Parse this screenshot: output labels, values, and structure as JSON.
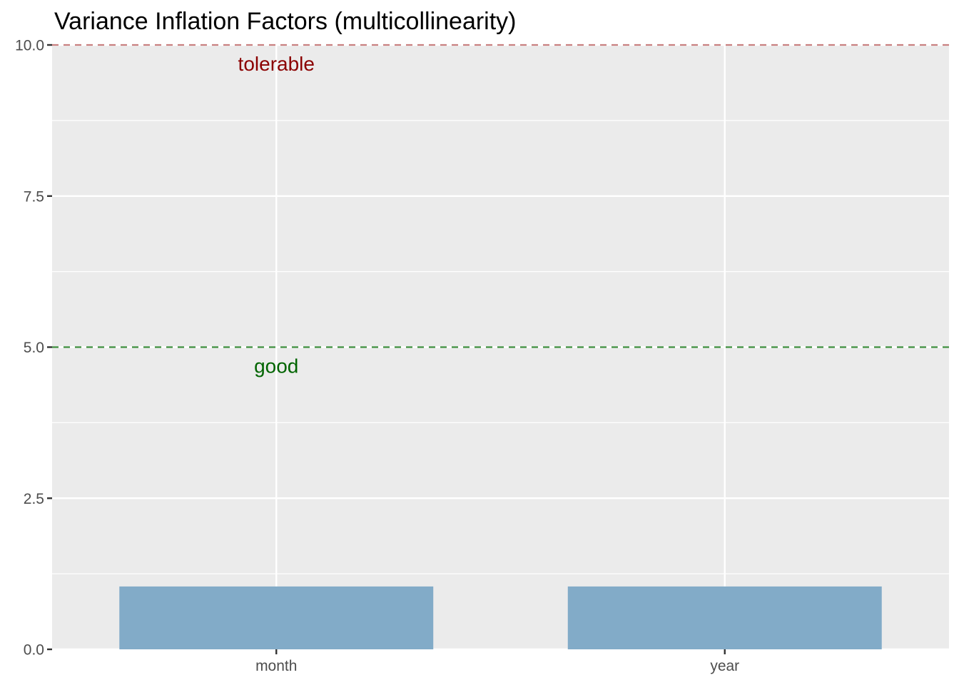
{
  "chart_data": {
    "type": "bar",
    "title": "Variance Inflation Factors (multicollinearity)",
    "xlabel": "",
    "ylabel": "",
    "categories": [
      "month",
      "year"
    ],
    "values": [
      1.04,
      1.04
    ],
    "ylim": [
      0,
      10
    ],
    "y_ticks": [
      "0.0",
      "2.5",
      "5.0",
      "7.5",
      "10.0"
    ],
    "y_tick_values": [
      0,
      2.5,
      5,
      7.5,
      10
    ],
    "grid": true,
    "reference_lines": [
      {
        "value": 10,
        "label": "tolerable",
        "line_color": "#c98080",
        "label_color": "#8b0000"
      },
      {
        "value": 5,
        "label": "good",
        "line_color": "#3d8f3d",
        "label_color": "#006400"
      }
    ],
    "colors": {
      "bar": "#82abc8",
      "panel": "#ebebeb",
      "grid": "#ffffff",
      "tick": "#333333"
    }
  }
}
